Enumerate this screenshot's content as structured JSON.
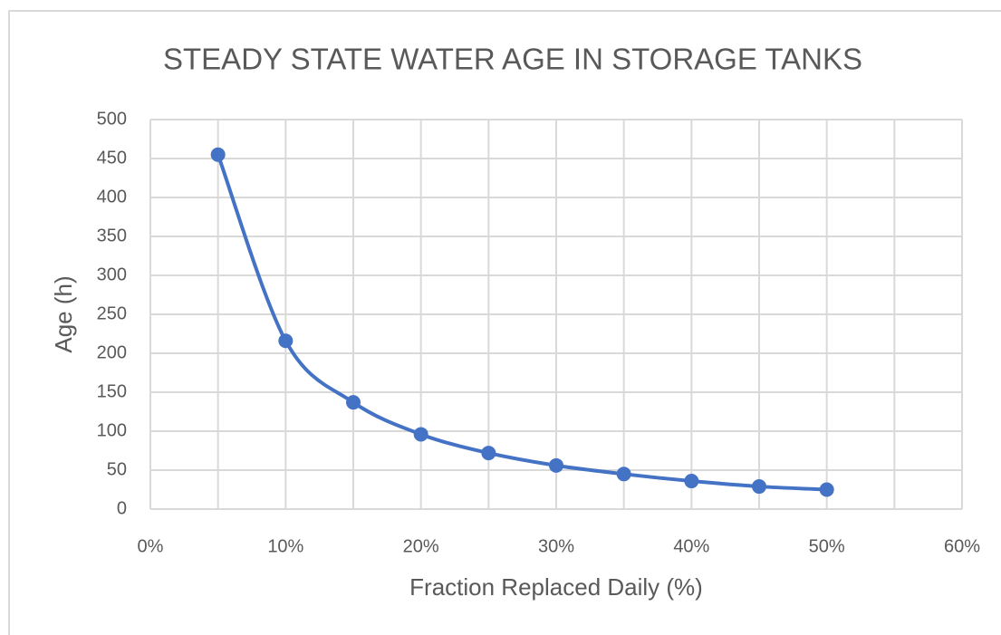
{
  "chart_data": {
    "type": "scatter",
    "title": "STEADY STATE WATER AGE IN STORAGE TANKS",
    "x_label": "Fraction Replaced  Daily (%)",
    "y_label": "Age (h)",
    "x": [
      5,
      10,
      15,
      20,
      25,
      30,
      35,
      40,
      45,
      50
    ],
    "series": [
      {
        "name": "Age",
        "color": "#4472c4",
        "values": [
          455,
          216,
          137,
          96,
          72,
          56,
          45,
          36,
          29,
          25
        ]
      }
    ],
    "xlim": [
      0,
      60
    ],
    "xticks": [
      {
        "value": 0,
        "label": "0%"
      },
      {
        "value": 10,
        "label": "10%"
      },
      {
        "value": 20,
        "label": "20%"
      },
      {
        "value": 30,
        "label": "30%"
      },
      {
        "value": 40,
        "label": "40%"
      },
      {
        "value": 50,
        "label": "50%"
      },
      {
        "value": 60,
        "label": "60%"
      }
    ],
    "x_minor_grid": [
      5,
      15,
      25,
      35,
      45,
      55
    ],
    "ylim": [
      0,
      500
    ],
    "yticks": [
      0,
      50,
      100,
      150,
      200,
      250,
      300,
      350,
      400,
      450,
      500
    ],
    "grid": true,
    "smooth": true
  }
}
